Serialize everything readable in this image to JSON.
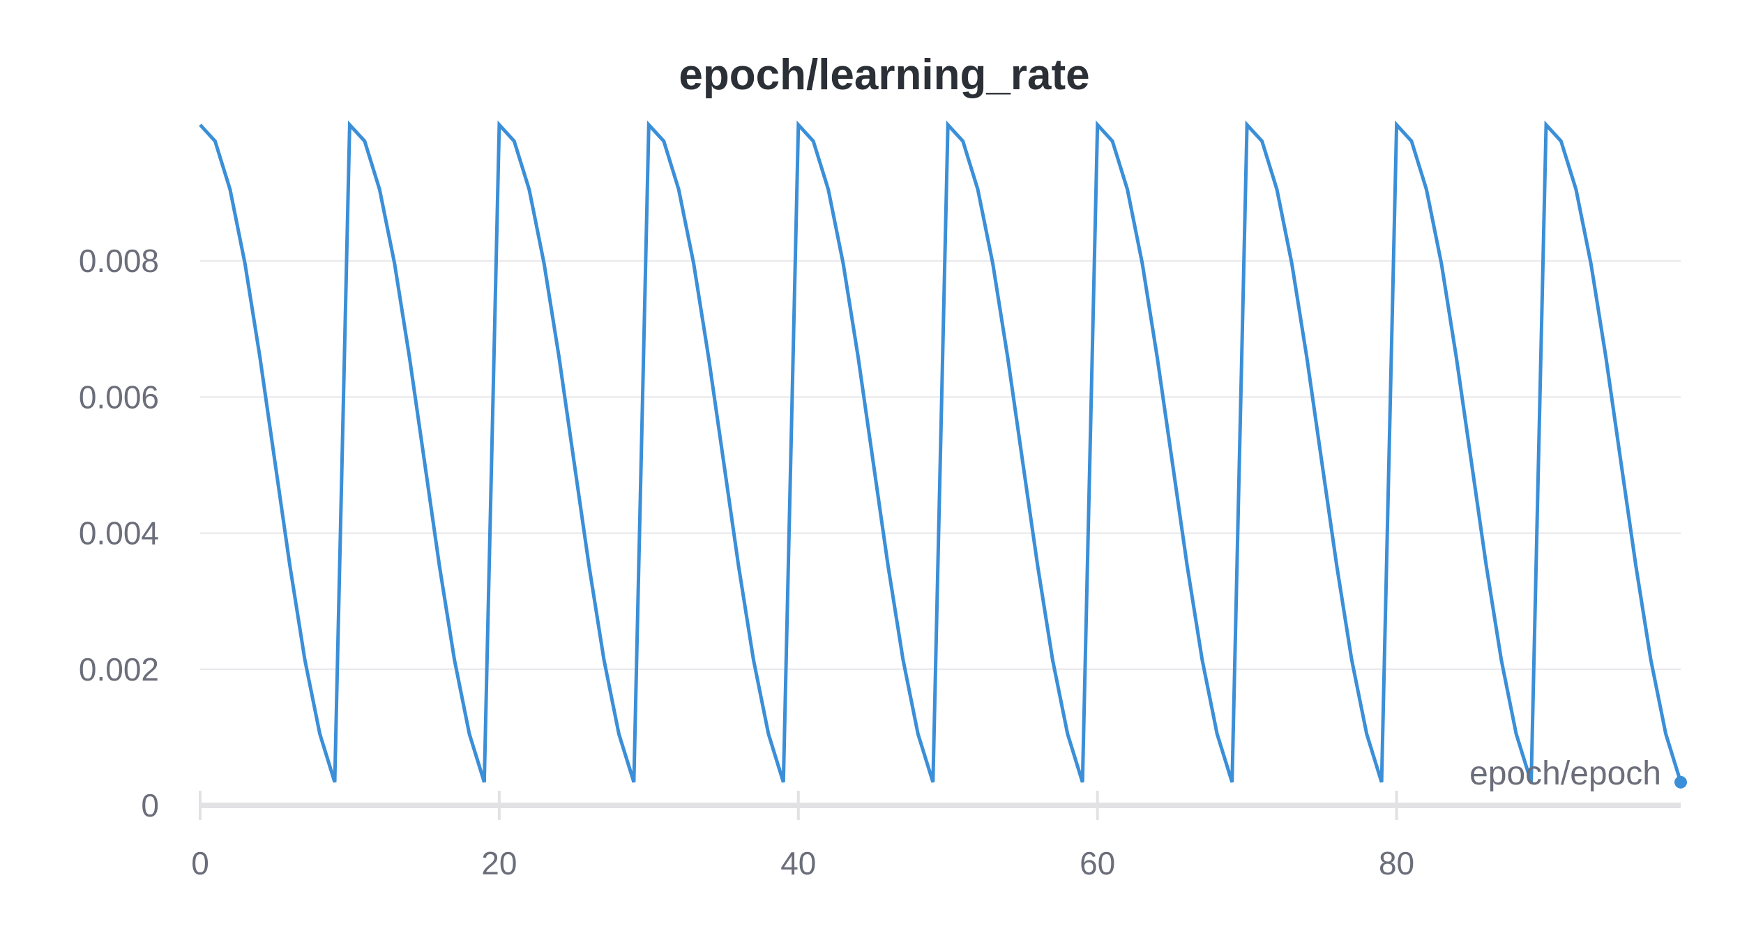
{
  "chart_data": {
    "type": "line",
    "title": "epoch/learning_rate",
    "xlabel": "epoch/epoch",
    "ylabel": "",
    "xlim": [
      0,
      99
    ],
    "ylim": [
      0,
      0.01
    ],
    "x_ticks": [
      0,
      20,
      40,
      60,
      80
    ],
    "x_tick_labels": [
      "0",
      "20",
      "40",
      "60",
      "80"
    ],
    "y_ticks": [
      0,
      0.002,
      0.004,
      0.006,
      0.008
    ],
    "y_tick_labels": [
      "0",
      "0.002",
      "0.004",
      "0.006",
      "0.008"
    ],
    "grid": true,
    "legend": "none",
    "series": [
      {
        "color": "#3b8fd8",
        "x": [
          0,
          1,
          2,
          3,
          4,
          5,
          6,
          7,
          8,
          9,
          10,
          11,
          12,
          13,
          14,
          15,
          16,
          17,
          18,
          19,
          20,
          21,
          22,
          23,
          24,
          25,
          26,
          27,
          28,
          29,
          30,
          31,
          32,
          33,
          34,
          35,
          36,
          37,
          38,
          39,
          40,
          41,
          42,
          43,
          44,
          45,
          46,
          47,
          48,
          49,
          50,
          51,
          52,
          53,
          54,
          55,
          56,
          57,
          58,
          59,
          60,
          61,
          62,
          63,
          64,
          65,
          66,
          67,
          68,
          69,
          70,
          71,
          72,
          73,
          74,
          75,
          76,
          77,
          78,
          79,
          80,
          81,
          82,
          83,
          84,
          85,
          86,
          87,
          88,
          89,
          90,
          91,
          92,
          93,
          94,
          95,
          96,
          97,
          98,
          99
        ],
        "y": [
          0.01,
          0.00976,
          0.00905,
          0.00796,
          0.00658,
          0.00505,
          0.00352,
          0.00214,
          0.00105,
          0.00034,
          0.01,
          0.00976,
          0.00905,
          0.00796,
          0.00658,
          0.00505,
          0.00352,
          0.00214,
          0.00105,
          0.00034,
          0.01,
          0.00976,
          0.00905,
          0.00796,
          0.00658,
          0.00505,
          0.00352,
          0.00214,
          0.00105,
          0.00034,
          0.01,
          0.00976,
          0.00905,
          0.00796,
          0.00658,
          0.00505,
          0.00352,
          0.00214,
          0.00105,
          0.00034,
          0.01,
          0.00976,
          0.00905,
          0.00796,
          0.00658,
          0.00505,
          0.00352,
          0.00214,
          0.00105,
          0.00034,
          0.01,
          0.00976,
          0.00905,
          0.00796,
          0.00658,
          0.00505,
          0.00352,
          0.00214,
          0.00105,
          0.00034,
          0.01,
          0.00976,
          0.00905,
          0.00796,
          0.00658,
          0.00505,
          0.00352,
          0.00214,
          0.00105,
          0.00034,
          0.01,
          0.00976,
          0.00905,
          0.00796,
          0.00658,
          0.00505,
          0.00352,
          0.00214,
          0.00105,
          0.00034,
          0.01,
          0.00976,
          0.00905,
          0.00796,
          0.00658,
          0.00505,
          0.00352,
          0.00214,
          0.00105,
          0.00034,
          0.01,
          0.00976,
          0.00905,
          0.00796,
          0.00658,
          0.00505,
          0.00352,
          0.00214,
          0.00105,
          0.00034
        ]
      }
    ]
  }
}
